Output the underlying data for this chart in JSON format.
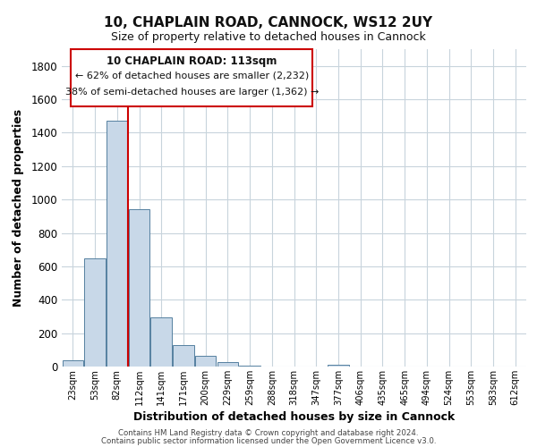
{
  "title1": "10, CHAPLAIN ROAD, CANNOCK, WS12 2UY",
  "title2": "Size of property relative to detached houses in Cannock",
  "xlabel": "Distribution of detached houses by size in Cannock",
  "ylabel": "Number of detached properties",
  "bar_labels": [
    "23sqm",
    "53sqm",
    "82sqm",
    "112sqm",
    "141sqm",
    "171sqm",
    "200sqm",
    "229sqm",
    "259sqm",
    "288sqm",
    "318sqm",
    "347sqm",
    "377sqm",
    "406sqm",
    "435sqm",
    "465sqm",
    "494sqm",
    "524sqm",
    "553sqm",
    "583sqm",
    "612sqm"
  ],
  "bar_values": [
    40,
    650,
    1470,
    940,
    295,
    130,
    65,
    25,
    5,
    0,
    0,
    0,
    10,
    0,
    0,
    0,
    0,
    0,
    0,
    0,
    0
  ],
  "bar_color": "#c8d8e8",
  "bar_edge_color": "#5580a0",
  "vline_color": "#cc0000",
  "ylim": [
    0,
    1900
  ],
  "yticks": [
    0,
    200,
    400,
    600,
    800,
    1000,
    1200,
    1400,
    1600,
    1800
  ],
  "annotation_box_text_line1": "10 CHAPLAIN ROAD: 113sqm",
  "annotation_box_text_line2": "← 62% of detached houses are smaller (2,232)",
  "annotation_box_text_line3": "38% of semi-detached houses are larger (1,362) →",
  "footer1": "Contains HM Land Registry data © Crown copyright and database right 2024.",
  "footer2": "Contains public sector information licensed under the Open Government Licence v3.0.",
  "background_color": "#ffffff",
  "grid_color": "#c8d4dc"
}
